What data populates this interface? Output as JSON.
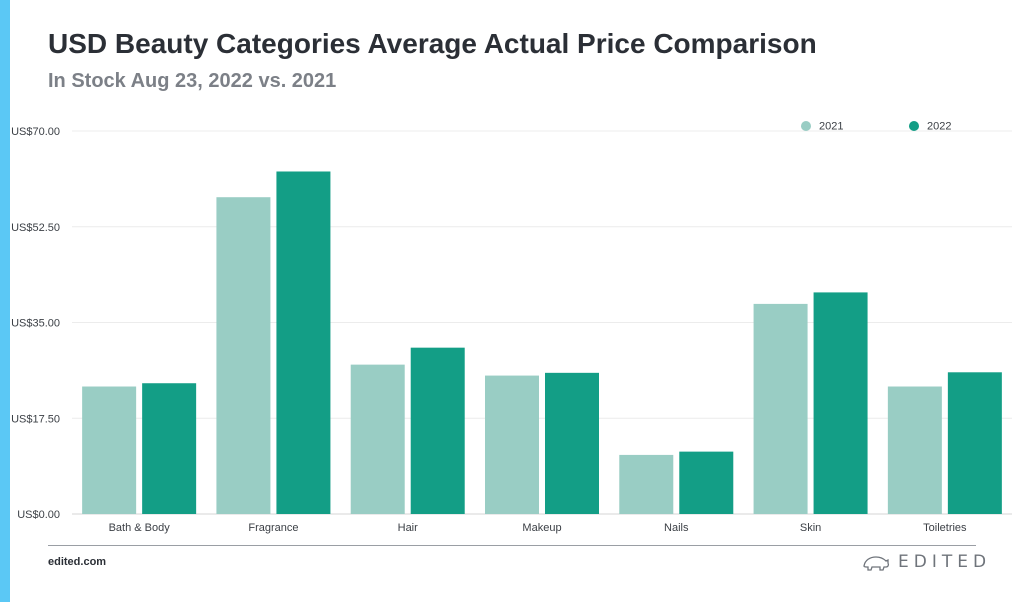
{
  "header": {
    "title": "USD Beauty Categories Average Actual Price Comparison",
    "subtitle": "In Stock Aug 23, 2022 vs. 2021"
  },
  "footer": {
    "site": "edited.com",
    "brand": "EDITED",
    "brand_icon": "polar-bear-icon"
  },
  "colors": {
    "accent_strip": "#5bc8f5",
    "series_2021": "#99cdc4",
    "series_2022": "#139e86",
    "gridline": "#ececec",
    "axis_text": "#3c4046"
  },
  "chart_data": {
    "type": "bar",
    "title": "USD Beauty Categories Average Actual Price Comparison",
    "subtitle": "In Stock Aug 23, 2022 vs. 2021",
    "categories": [
      "Bath & Body",
      "Fragrance",
      "Hair",
      "Makeup",
      "Nails",
      "Skin",
      "Toiletries"
    ],
    "series": [
      {
        "name": "2021",
        "values": [
          23.3,
          57.9,
          27.3,
          25.3,
          10.8,
          38.4,
          23.3
        ]
      },
      {
        "name": "2022",
        "values": [
          23.9,
          62.6,
          30.4,
          25.8,
          11.4,
          40.5,
          25.9
        ]
      }
    ],
    "ylim": [
      0,
      70
    ],
    "yticks": [
      0,
      17.5,
      35,
      52.5,
      70
    ],
    "ytick_labels": [
      "US$0.00",
      "US$17.50",
      "US$35.00",
      "US$52.50",
      "US$70.00"
    ],
    "xlabel": "",
    "ylabel": "",
    "grid": true,
    "legend_position": "top-right"
  }
}
